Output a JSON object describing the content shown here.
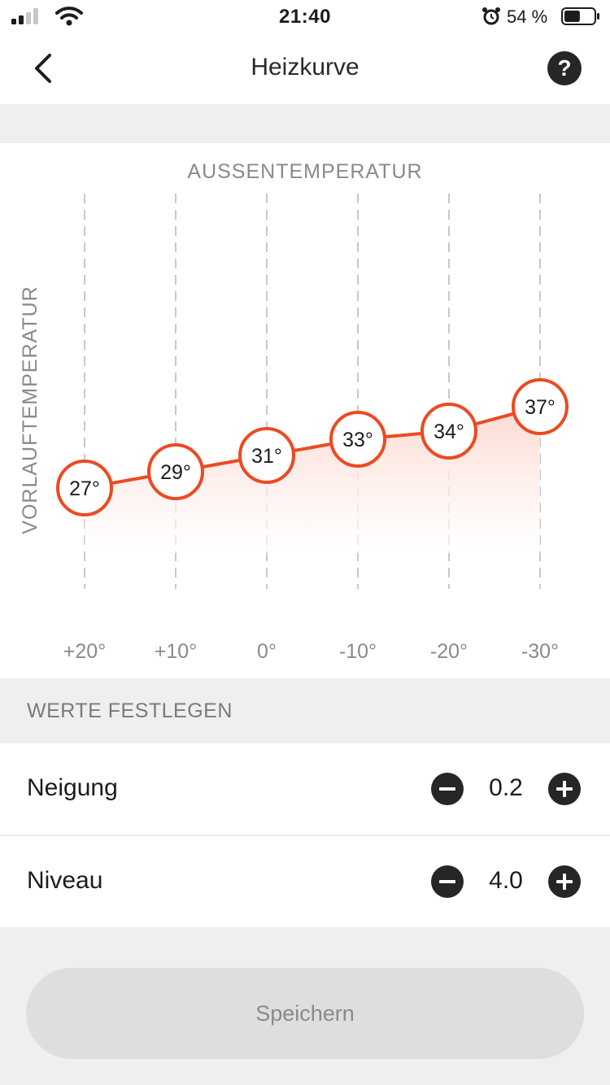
{
  "status_bar": {
    "time": "21:40",
    "battery_percent": "54 %",
    "battery_level": 0.54,
    "icons": [
      "signal-icon",
      "wifi-icon",
      "alarm-icon",
      "battery-icon"
    ]
  },
  "nav": {
    "title": "Heizkurve",
    "back_icon": "chevron-left-icon",
    "help_icon": "question-circle-icon"
  },
  "chart_data": {
    "type": "line",
    "title": "AUSSENTEMPERATUR",
    "ylabel": "VORLAUFTEMPERATUR",
    "categories": [
      "+20°",
      "+10°",
      "0°",
      "-10°",
      "-20°",
      "-30°"
    ],
    "x": [
      20,
      10,
      0,
      -10,
      -20,
      -30
    ],
    "series": [
      {
        "values": [
          27,
          29,
          31,
          33,
          34,
          37
        ],
        "labels": [
          "27°",
          "29°",
          "31°",
          "33°",
          "34°",
          "37°"
        ]
      }
    ],
    "grid": "vertical dashed",
    "colors": {
      "line": "#ec4a22",
      "fill_top": "#fdd9d0",
      "grid": "#c8c8c8",
      "text": "#8a8a8a"
    }
  },
  "settings": {
    "section_title": "WERTE FESTLEGEN",
    "rows": [
      {
        "label": "Neigung",
        "value": "0.2"
      },
      {
        "label": "Niveau",
        "value": "4.0"
      }
    ]
  },
  "save_button": {
    "label": "Speichern"
  }
}
